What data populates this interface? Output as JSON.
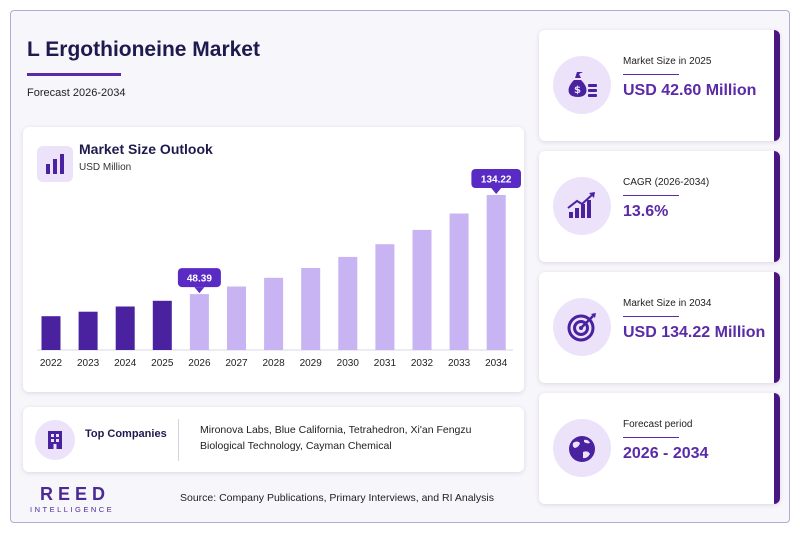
{
  "header": {
    "title": "L Ergothioneine Market",
    "subtitle": "Forecast 2026-2034"
  },
  "chart_data": {
    "type": "bar",
    "title": "Market Size Outlook",
    "ylabel": "USD Million",
    "categories": [
      "2022",
      "2023",
      "2024",
      "2025",
      "2026",
      "2027",
      "2028",
      "2029",
      "2030",
      "2031",
      "2032",
      "2033",
      "2034"
    ],
    "values": [
      29.3,
      33.2,
      37.7,
      42.6,
      48.39,
      55.0,
      62.5,
      71.0,
      80.6,
      91.6,
      104.0,
      118.2,
      134.22
    ],
    "historical_color": "#4a22a0",
    "forecast_color": "#c8b4f2",
    "callouts": [
      {
        "category": "2026",
        "label": "48.39"
      },
      {
        "category": "2034",
        "label": "134.22"
      }
    ]
  },
  "companies": {
    "label": "Top Companies",
    "text": "Mironova Labs, Blue California, Tetrahedron, Xi'an Fengzu Biological Technology, Cayman Chemical"
  },
  "branding": {
    "name": "REED",
    "tagline": "INTELLIGENCE"
  },
  "source": "Source: Company Publications, Primary Interviews, and RI Analysis",
  "stats": [
    {
      "label": "Market Size in 2025",
      "value": "USD 42.60 Million",
      "icon": "money-bag-icon"
    },
    {
      "label": "CAGR (2026-2034)",
      "value": "13.6%",
      "icon": "growth-chart-icon"
    },
    {
      "label": "Market Size in 2034",
      "value": "USD 134.22 Million",
      "icon": "target-icon"
    },
    {
      "label": "Forecast period",
      "value": "2026 - 2034",
      "icon": "globe-icon"
    }
  ],
  "colors": {
    "accent": "#5b2aa6",
    "title": "#1e1a4d",
    "edge": "#4a1580",
    "icon_bg": "#ece2fa"
  }
}
